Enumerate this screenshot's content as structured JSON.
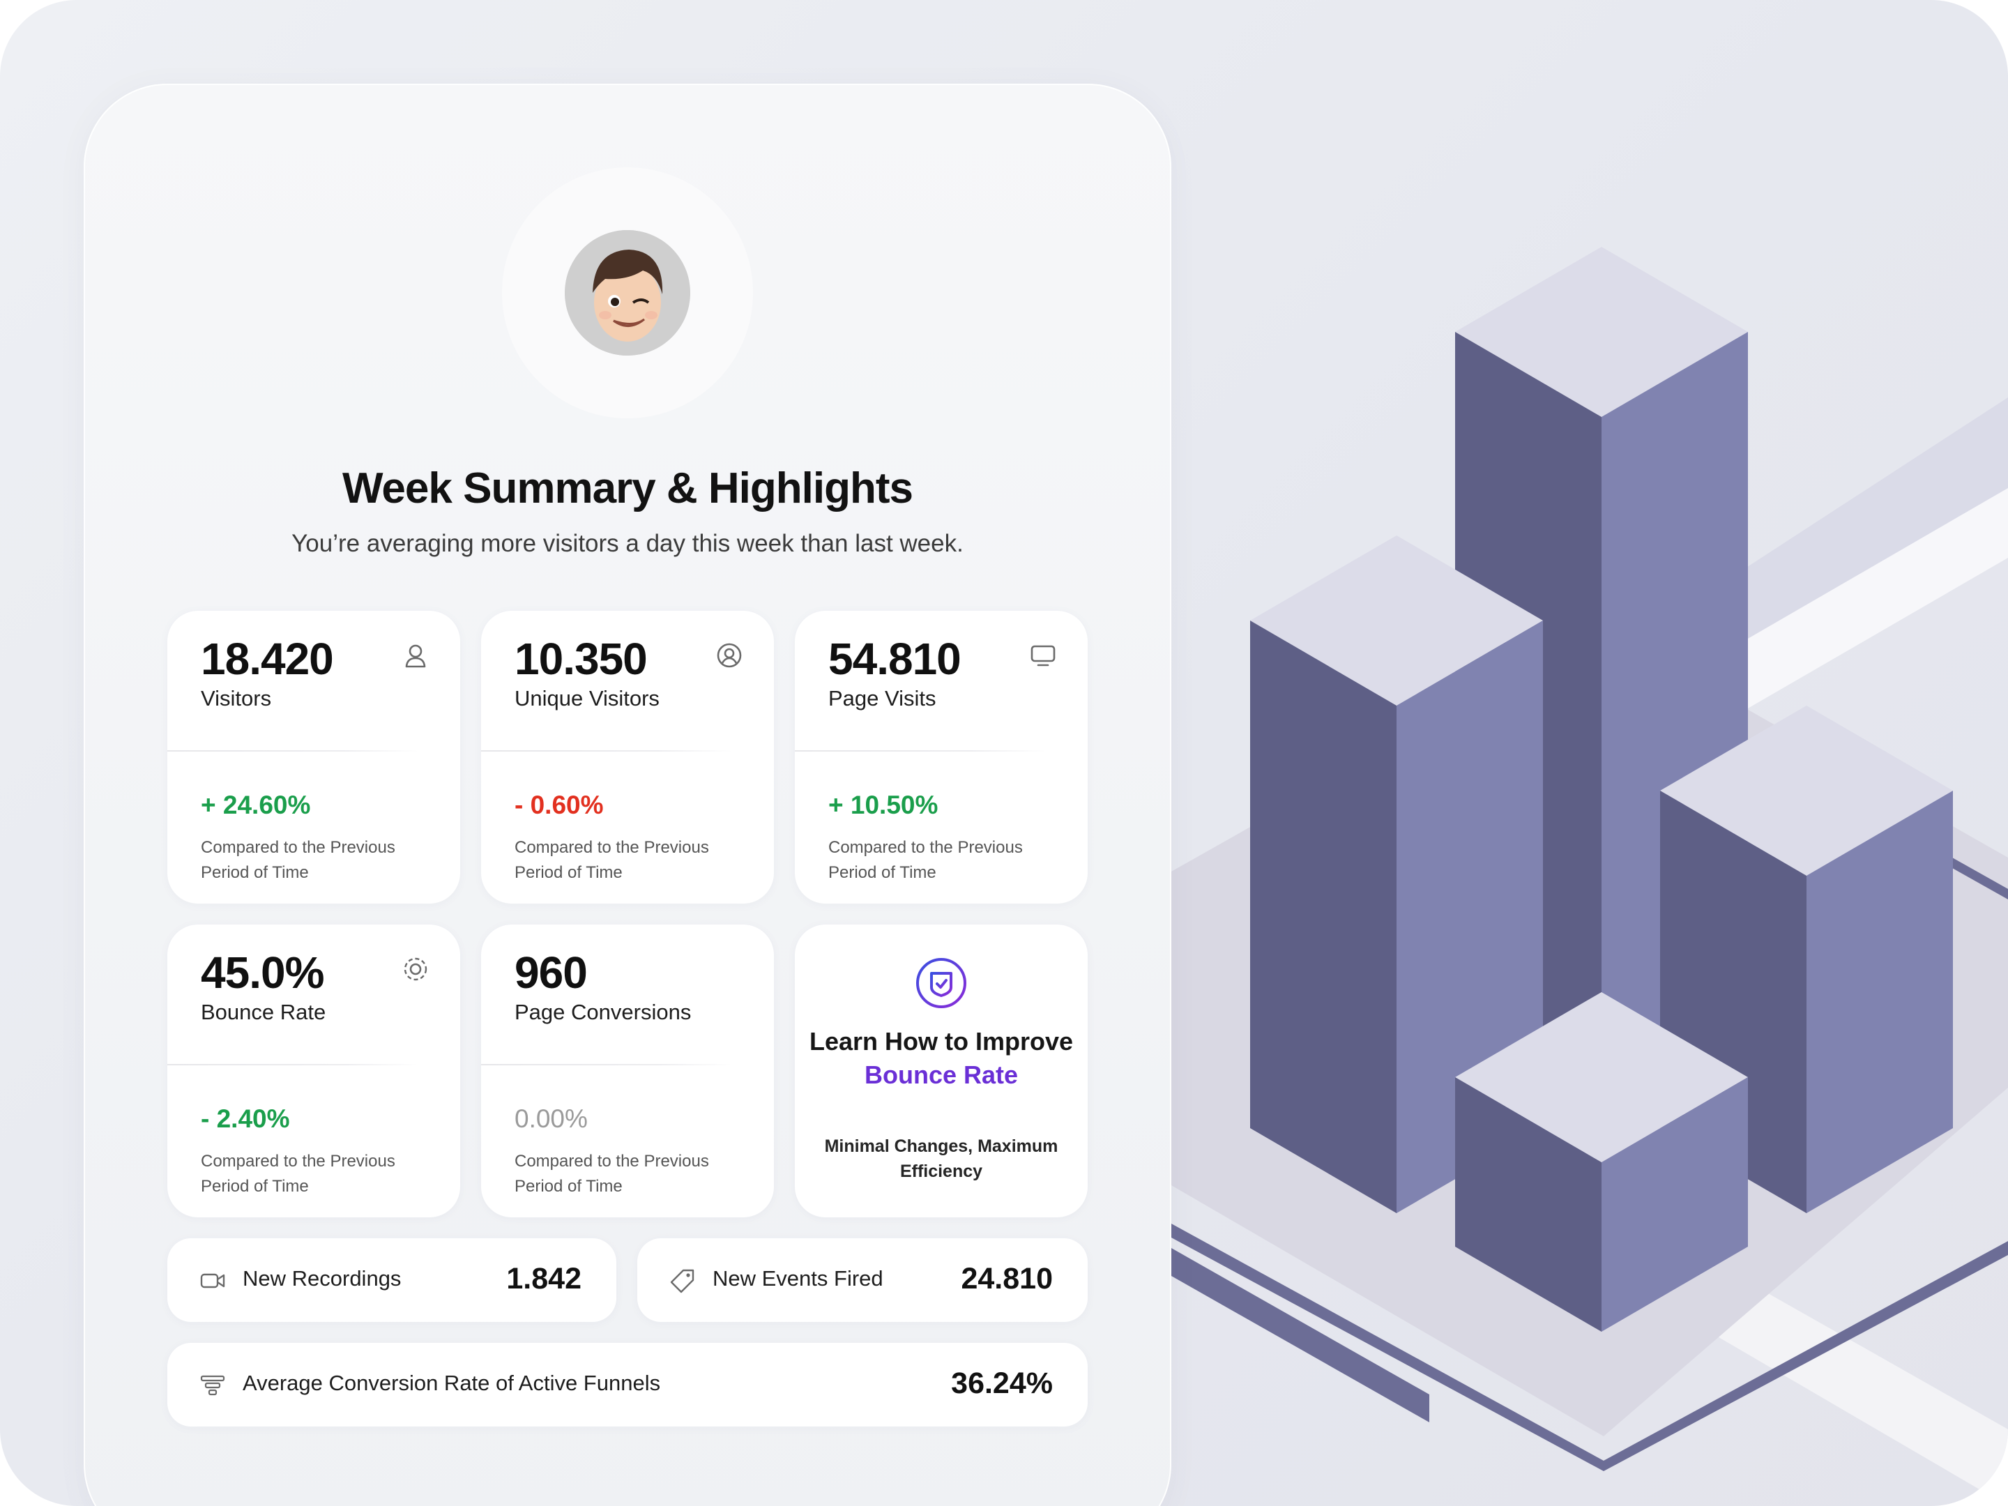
{
  "header": {
    "title": "Week Summary & Highlights",
    "subtitle": "You’re averaging more visitors a day this week than last week."
  },
  "stats": [
    {
      "value": "18.420",
      "label": "Visitors",
      "change": "+ 24.60%",
      "trend": "up",
      "icon": "user-icon",
      "compare": "Compared to the Previous Period of Time"
    },
    {
      "value": "10.350",
      "label": "Unique Visitors",
      "change": "- 0.60%",
      "trend": "down",
      "icon": "user-circle-icon",
      "compare": "Compared to the Previous Period of Time"
    },
    {
      "value": "54.810",
      "label": "Page Visits",
      "change": "+ 10.50%",
      "trend": "up",
      "icon": "monitor-icon",
      "compare": "Compared to the Previous Period of Time"
    },
    {
      "value": "45.0%",
      "label": "Bounce Rate",
      "change": "- 2.40%",
      "trend": "up",
      "icon": "target-icon",
      "compare": "Compared to the Previous Period of Time"
    },
    {
      "value": "960",
      "label": "Page Conversions",
      "change": "0.00%",
      "trend": "neutral",
      "compare": "Compared to the Previous Period of Time"
    }
  ],
  "tip": {
    "title_part1": "Learn How to Improve ",
    "title_accent": "Bounce Rate",
    "subtitle": "Minimal Changes, Maximum Efficiency",
    "icon": "shield-check-icon"
  },
  "rows": {
    "recordings": {
      "label": "New Recordings",
      "value": "1.842",
      "icon": "video-icon"
    },
    "events": {
      "label": "New Events Fired",
      "value": "24.810",
      "icon": "tag-icon"
    },
    "funnels": {
      "label": "Average Conversion Rate of Active Funnels",
      "value": "36.24%",
      "icon": "funnel-icon"
    }
  },
  "colors": {
    "up": "#1a9e4b",
    "down": "#e2301f",
    "neutral": "#9a9a9a",
    "accent": "#6a2fd6",
    "block_top": "#dcdce9",
    "block_left": "#5e5f86",
    "block_right": "#8083b0"
  }
}
